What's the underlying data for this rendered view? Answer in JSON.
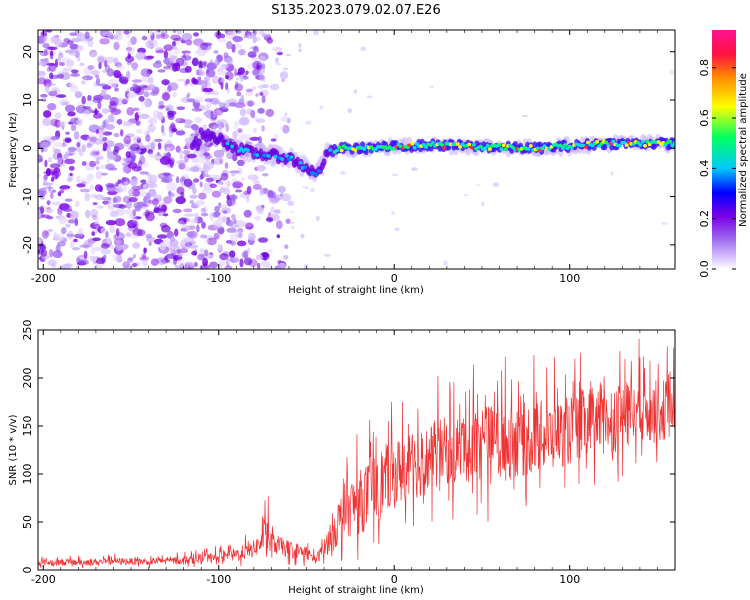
{
  "title": "S135.2023.079.02.07.E26",
  "chart_data": [
    {
      "type": "heatmap",
      "xlabel": "Height of straight line (km)",
      "ylabel": "Frequency (Hz)",
      "xlim": [
        -203,
        160
      ],
      "ylim": [
        -25,
        24.5
      ],
      "xticks": [
        -200,
        -100,
        0,
        100
      ],
      "yticks": [
        -20,
        -10,
        0,
        10,
        20
      ],
      "colorbar": {
        "label": "Normalized spectral amplitude",
        "range": [
          0.0,
          0.95
        ],
        "ticks": [
          0.0,
          0.2,
          0.4,
          0.6,
          0.8
        ],
        "tick_labels": [
          "0.0",
          "0.2",
          "0.4",
          "0.6",
          "0.8"
        ],
        "colors": [
          "#ffffff",
          "#a070f0",
          "#7a00e6",
          "#0000ff",
          "#00c8ff",
          "#00ff60",
          "#ffff00",
          "#ff8c00",
          "#ff1040",
          "#ff1493"
        ]
      },
      "ridge": [
        {
          "x": -110,
          "y": 3
        },
        {
          "x": -100,
          "y": 2
        },
        {
          "x": -90,
          "y": 0
        },
        {
          "x": -80,
          "y": -1
        },
        {
          "x": -70,
          "y": -1.5
        },
        {
          "x": -60,
          "y": -2
        },
        {
          "x": -50,
          "y": -4
        },
        {
          "x": -44,
          "y": -5.5
        },
        {
          "x": -38,
          "y": -1
        },
        {
          "x": -30,
          "y": 0
        },
        {
          "x": -20,
          "y": 0
        },
        {
          "x": 0,
          "y": 0.3
        },
        {
          "x": 20,
          "y": 0.7
        },
        {
          "x": 40,
          "y": 0.5
        },
        {
          "x": 60,
          "y": 0.2
        },
        {
          "x": 80,
          "y": 0
        },
        {
          "x": 100,
          "y": 0.5
        },
        {
          "x": 120,
          "y": 1
        },
        {
          "x": 140,
          "y": 1
        },
        {
          "x": 160,
          "y": 1
        }
      ],
      "noise_region": {
        "x_from": -203,
        "x_to": -100,
        "y_from": -25,
        "y_to": 24.5
      }
    },
    {
      "type": "line",
      "xlabel": "Height of straight line (km)",
      "ylabel": "SNR (10 * v/v)",
      "xlim": [
        -203,
        160
      ],
      "ylim": [
        0,
        250
      ],
      "xticks": [
        -200,
        -100,
        0,
        100
      ],
      "yticks": [
        0,
        50,
        100,
        150,
        200,
        250
      ],
      "color": "#ee3333",
      "series": [
        {
          "x": [
            -200,
            -180,
            -160,
            -140,
            -120,
            -100,
            -90,
            -80,
            -75,
            -72,
            -70,
            -60,
            -50,
            -45,
            -40,
            -35,
            -30,
            -25,
            -20,
            -15,
            -10,
            -5,
            0,
            10,
            20,
            30,
            40,
            50,
            60,
            70,
            80,
            90,
            100,
            110,
            120,
            130,
            140,
            150,
            160
          ],
          "mean": [
            8,
            8,
            9,
            9,
            10,
            13,
            16,
            22,
            30,
            38,
            28,
            22,
            18,
            10,
            22,
            40,
            55,
            65,
            70,
            78,
            85,
            95,
            100,
            108,
            115,
            125,
            130,
            132,
            130,
            135,
            138,
            140,
            145,
            155,
            158,
            160,
            165,
            165,
            170
          ],
          "spread": [
            6,
            6,
            6,
            6,
            7,
            9,
            12,
            15,
            20,
            45,
            18,
            15,
            12,
            8,
            14,
            35,
            45,
            50,
            55,
            60,
            65,
            60,
            60,
            60,
            60,
            60,
            65,
            70,
            70,
            65,
            65,
            60,
            60,
            60,
            65,
            60,
            55,
            55,
            50
          ]
        }
      ]
    }
  ]
}
